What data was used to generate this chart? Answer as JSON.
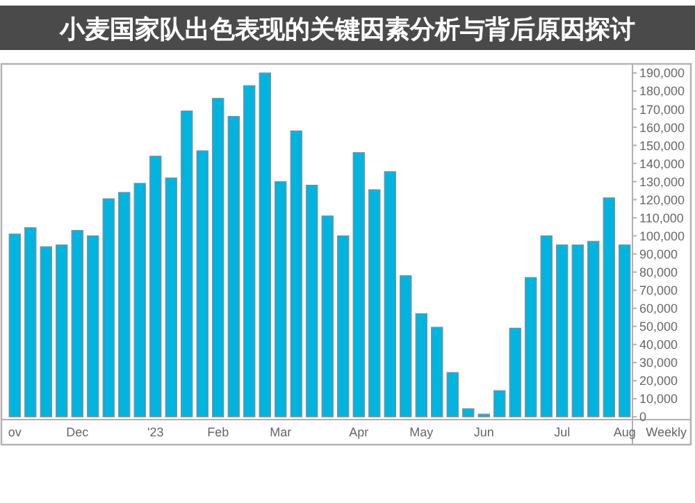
{
  "chart_data": {
    "type": "bar",
    "title": "小麦国家队出色表现的关键因素分析与背后原因探讨",
    "xlabel": "Weekly",
    "categories": [
      "ov",
      null,
      null,
      null,
      "Dec",
      null,
      null,
      null,
      null,
      "'23",
      null,
      null,
      null,
      "Feb",
      null,
      null,
      null,
      "Mar",
      null,
      null,
      null,
      null,
      "Apr",
      null,
      null,
      null,
      "May",
      null,
      null,
      null,
      "Jun",
      null,
      null,
      null,
      null,
      "Jul",
      null,
      null,
      null,
      "Aug"
    ],
    "values": [
      101000,
      104500,
      94000,
      95000,
      103000,
      100000,
      120500,
      124000,
      129000,
      144000,
      132000,
      169000,
      147000,
      176000,
      166000,
      183000,
      190000,
      130000,
      158000,
      128000,
      111000,
      100000,
      146000,
      125500,
      135500,
      78000,
      57000,
      49500,
      24500,
      4500,
      1500,
      14500,
      49000,
      77000,
      100000,
      95000,
      95000,
      97000,
      121000,
      95000
    ],
    "color": "#00b4e0",
    "ylim": [
      0,
      195000
    ],
    "yticks": [
      0,
      {
        "value": 10000,
        "label": "10,000"
      },
      {
        "value": 20000,
        "label": "20,000"
      },
      {
        "value": 30000,
        "label": "30,000"
      },
      {
        "value": 40000,
        "label": "40,000"
      },
      {
        "value": 50000,
        "label": "50,000"
      },
      {
        "value": 60000,
        "label": "60,000"
      },
      {
        "value": 70000,
        "label": "70,000"
      },
      {
        "value": 80000,
        "label": "80,000"
      },
      {
        "value": 90000,
        "label": "90,000"
      },
      {
        "value": 100000,
        "label": "100,000"
      },
      {
        "value": 110000,
        "label": "110,000"
      },
      {
        "value": 120000,
        "label": "120,000"
      },
      {
        "value": 130000,
        "label": "130,000"
      },
      {
        "value": 140000,
        "label": "140,000"
      },
      {
        "value": 150000,
        "label": "150,000"
      },
      {
        "value": 160000,
        "label": "160,000"
      },
      {
        "value": 170000,
        "label": "170,000"
      },
      {
        "value": 180000,
        "label": "180,000"
      },
      {
        "value": 190000,
        "label": "190,000"
      }
    ]
  }
}
